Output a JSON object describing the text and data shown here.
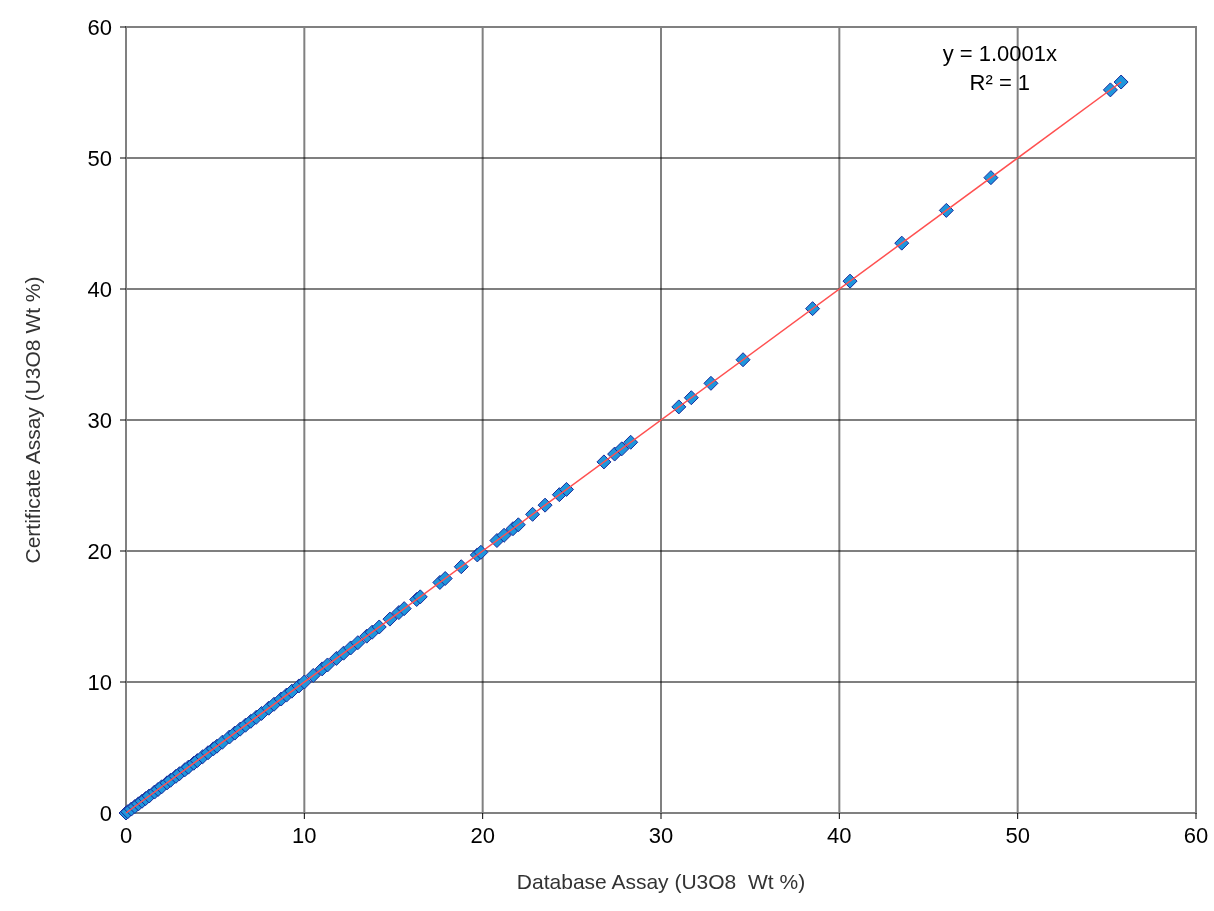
{
  "chart_data": {
    "type": "scatter",
    "xlabel": "Database Assay (U3O8  Wt %)",
    "ylabel": "Certificate Assay (U3O8 Wt %)",
    "xlim": [
      0,
      60
    ],
    "ylim": [
      0,
      60
    ],
    "xticks": [
      0,
      10,
      20,
      30,
      40,
      50,
      60
    ],
    "yticks": [
      0,
      10,
      20,
      30,
      40,
      50,
      60
    ],
    "grid": true,
    "annotations": [
      "y = 1.0001x",
      "R² = 1"
    ],
    "series": [
      {
        "marker": "diamond",
        "color": "#1e96dc",
        "x": [
          0,
          0.1,
          0.3,
          0.5,
          0.7,
          0.9,
          1.1,
          1.3,
          1.6,
          1.8,
          2.0,
          2.3,
          2.5,
          2.8,
          3.0,
          3.3,
          3.5,
          3.8,
          4.0,
          4.3,
          4.6,
          4.9,
          5.1,
          5.4,
          5.8,
          6.1,
          6.4,
          6.7,
          7.0,
          7.3,
          7.6,
          8.0,
          8.3,
          8.7,
          9.0,
          9.3,
          9.7,
          10.0,
          10.5,
          11.0,
          11.3,
          11.8,
          12.2,
          12.6,
          13.0,
          13.5,
          13.8,
          14.2,
          14.8,
          15.3,
          15.6,
          16.3,
          16.5,
          17.6,
          17.9,
          18.8,
          19.7,
          19.9,
          20.8,
          21.2,
          21.7,
          22.0,
          22.8,
          23.5,
          24.3,
          24.7,
          26.8,
          27.4,
          27.8,
          28.3,
          31.0,
          31.7,
          32.8,
          34.6,
          38.5,
          40.6,
          43.5,
          46.0,
          48.5,
          55.2,
          55.8
        ],
        "values": [
          0,
          0.1,
          0.3,
          0.5,
          0.7,
          0.9,
          1.1,
          1.3,
          1.6,
          1.8,
          2.0,
          2.3,
          2.5,
          2.8,
          3.0,
          3.3,
          3.5,
          3.8,
          4.0,
          4.3,
          4.6,
          4.9,
          5.1,
          5.4,
          5.8,
          6.1,
          6.4,
          6.7,
          7.0,
          7.3,
          7.6,
          8.0,
          8.3,
          8.7,
          9.0,
          9.3,
          9.7,
          10.0,
          10.5,
          11.0,
          11.3,
          11.8,
          12.2,
          12.6,
          13.0,
          13.5,
          13.8,
          14.2,
          14.8,
          15.3,
          15.6,
          16.3,
          16.5,
          17.6,
          17.9,
          18.8,
          19.7,
          19.9,
          20.8,
          21.2,
          21.7,
          22.0,
          22.8,
          23.5,
          24.3,
          24.7,
          26.8,
          27.4,
          27.8,
          28.3,
          31.0,
          31.7,
          32.8,
          34.6,
          38.5,
          40.6,
          43.5,
          46.0,
          48.5,
          55.2,
          55.8
        ]
      },
      {
        "type": "line",
        "color": "#ff5050",
        "x": [
          0,
          55.8
        ],
        "values": [
          0,
          55.8
        ]
      }
    ]
  }
}
